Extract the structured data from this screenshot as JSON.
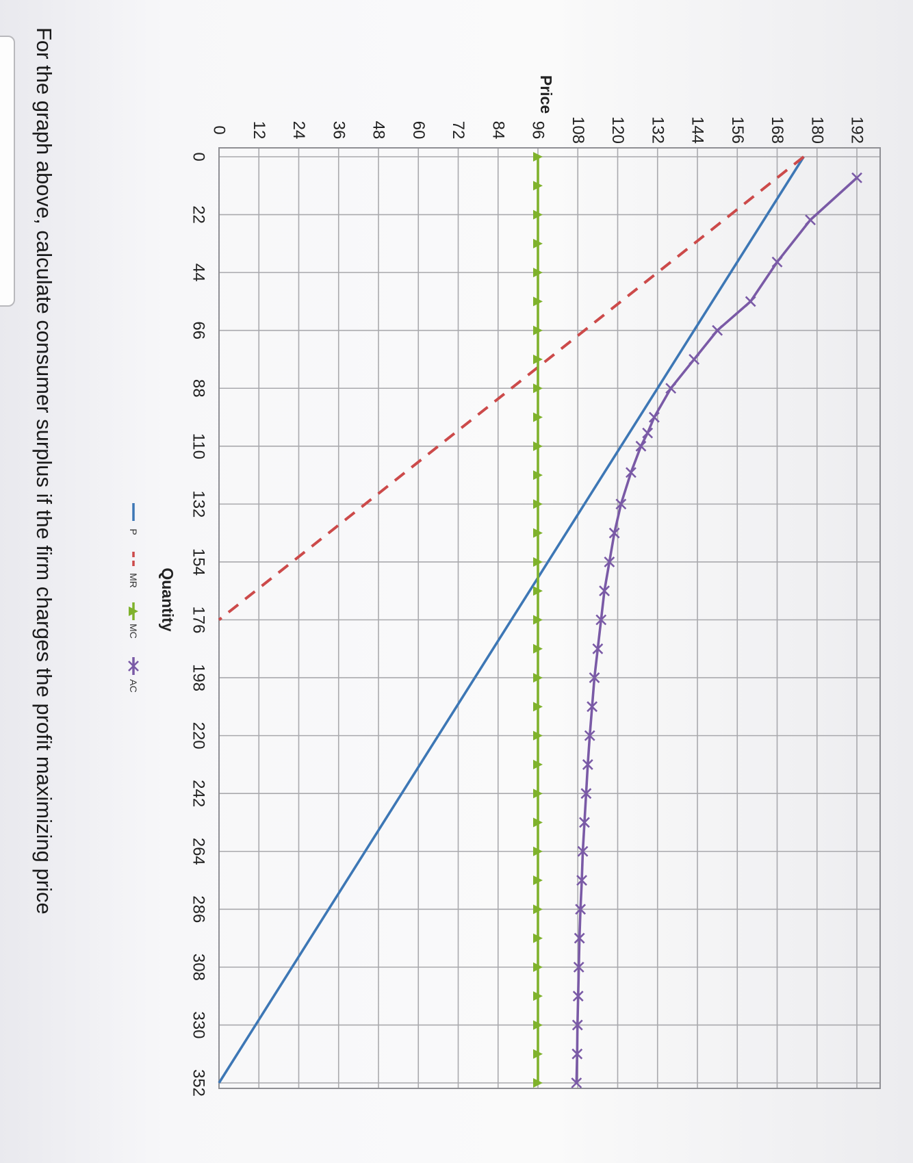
{
  "question": {
    "text": "For the graph above, calculate consumer surplus if the firm charges the profit maximizing price"
  },
  "chart_data": {
    "type": "line",
    "xlabel": "Quantity",
    "ylabel": "Price",
    "xlim": [
      0,
      352
    ],
    "ylim": [
      0,
      192
    ],
    "x_ticks": [
      0,
      22,
      44,
      66,
      88,
      110,
      132,
      154,
      176,
      198,
      220,
      242,
      264,
      286,
      308,
      330,
      352
    ],
    "y_ticks": [
      0,
      12,
      24,
      36,
      48,
      60,
      72,
      84,
      96,
      108,
      120,
      132,
      144,
      156,
      168,
      180,
      192
    ],
    "grid": true,
    "legend_placement": "bottom",
    "series": [
      {
        "name": "P",
        "color": "#3d77b5",
        "style": "solid",
        "marker": "none",
        "x": [
          0,
          352
        ],
        "y": [
          176,
          0
        ]
      },
      {
        "name": "MR",
        "color": "#cc4a4a",
        "style": "dashed",
        "marker": "none",
        "x": [
          0,
          176
        ],
        "y": [
          176,
          0
        ]
      },
      {
        "name": "MC",
        "color": "#7fb22c",
        "style": "solid",
        "marker": "triangle",
        "x": [
          0,
          11,
          22,
          33,
          44,
          55,
          66,
          77,
          88,
          99,
          110,
          121,
          132,
          143,
          154,
          165,
          176,
          187,
          198,
          209,
          220,
          231,
          242,
          253,
          264,
          275,
          286,
          297,
          308,
          319,
          330,
          341,
          352
        ],
        "y": [
          96,
          96,
          96,
          96,
          96,
          96,
          96,
          96,
          96,
          96,
          96,
          96,
          96,
          96,
          96,
          96,
          96,
          96,
          96,
          96,
          96,
          96,
          96,
          96,
          96,
          96,
          96,
          96,
          96,
          96,
          96,
          96,
          96
        ]
      },
      {
        "name": "AC",
        "color": "#7a5aa6",
        "style": "solid",
        "marker": "x",
        "x": [
          8,
          24,
          40,
          55,
          66,
          77,
          88,
          99,
          105,
          110,
          120,
          132,
          143,
          154,
          165,
          176,
          187,
          198,
          209,
          220,
          231,
          242,
          253,
          264,
          275,
          286,
          297,
          308,
          319,
          330,
          341,
          352
        ],
        "y": [
          192,
          178,
          168,
          160,
          150,
          143,
          136,
          131,
          129,
          127,
          124,
          121,
          119,
          117.5,
          116,
          115,
          114,
          113,
          112.3,
          111.6,
          111,
          110.5,
          110,
          109.5,
          109.2,
          108.8,
          108.5,
          108.3,
          108.1,
          107.9,
          107.8,
          107.6
        ]
      }
    ]
  }
}
